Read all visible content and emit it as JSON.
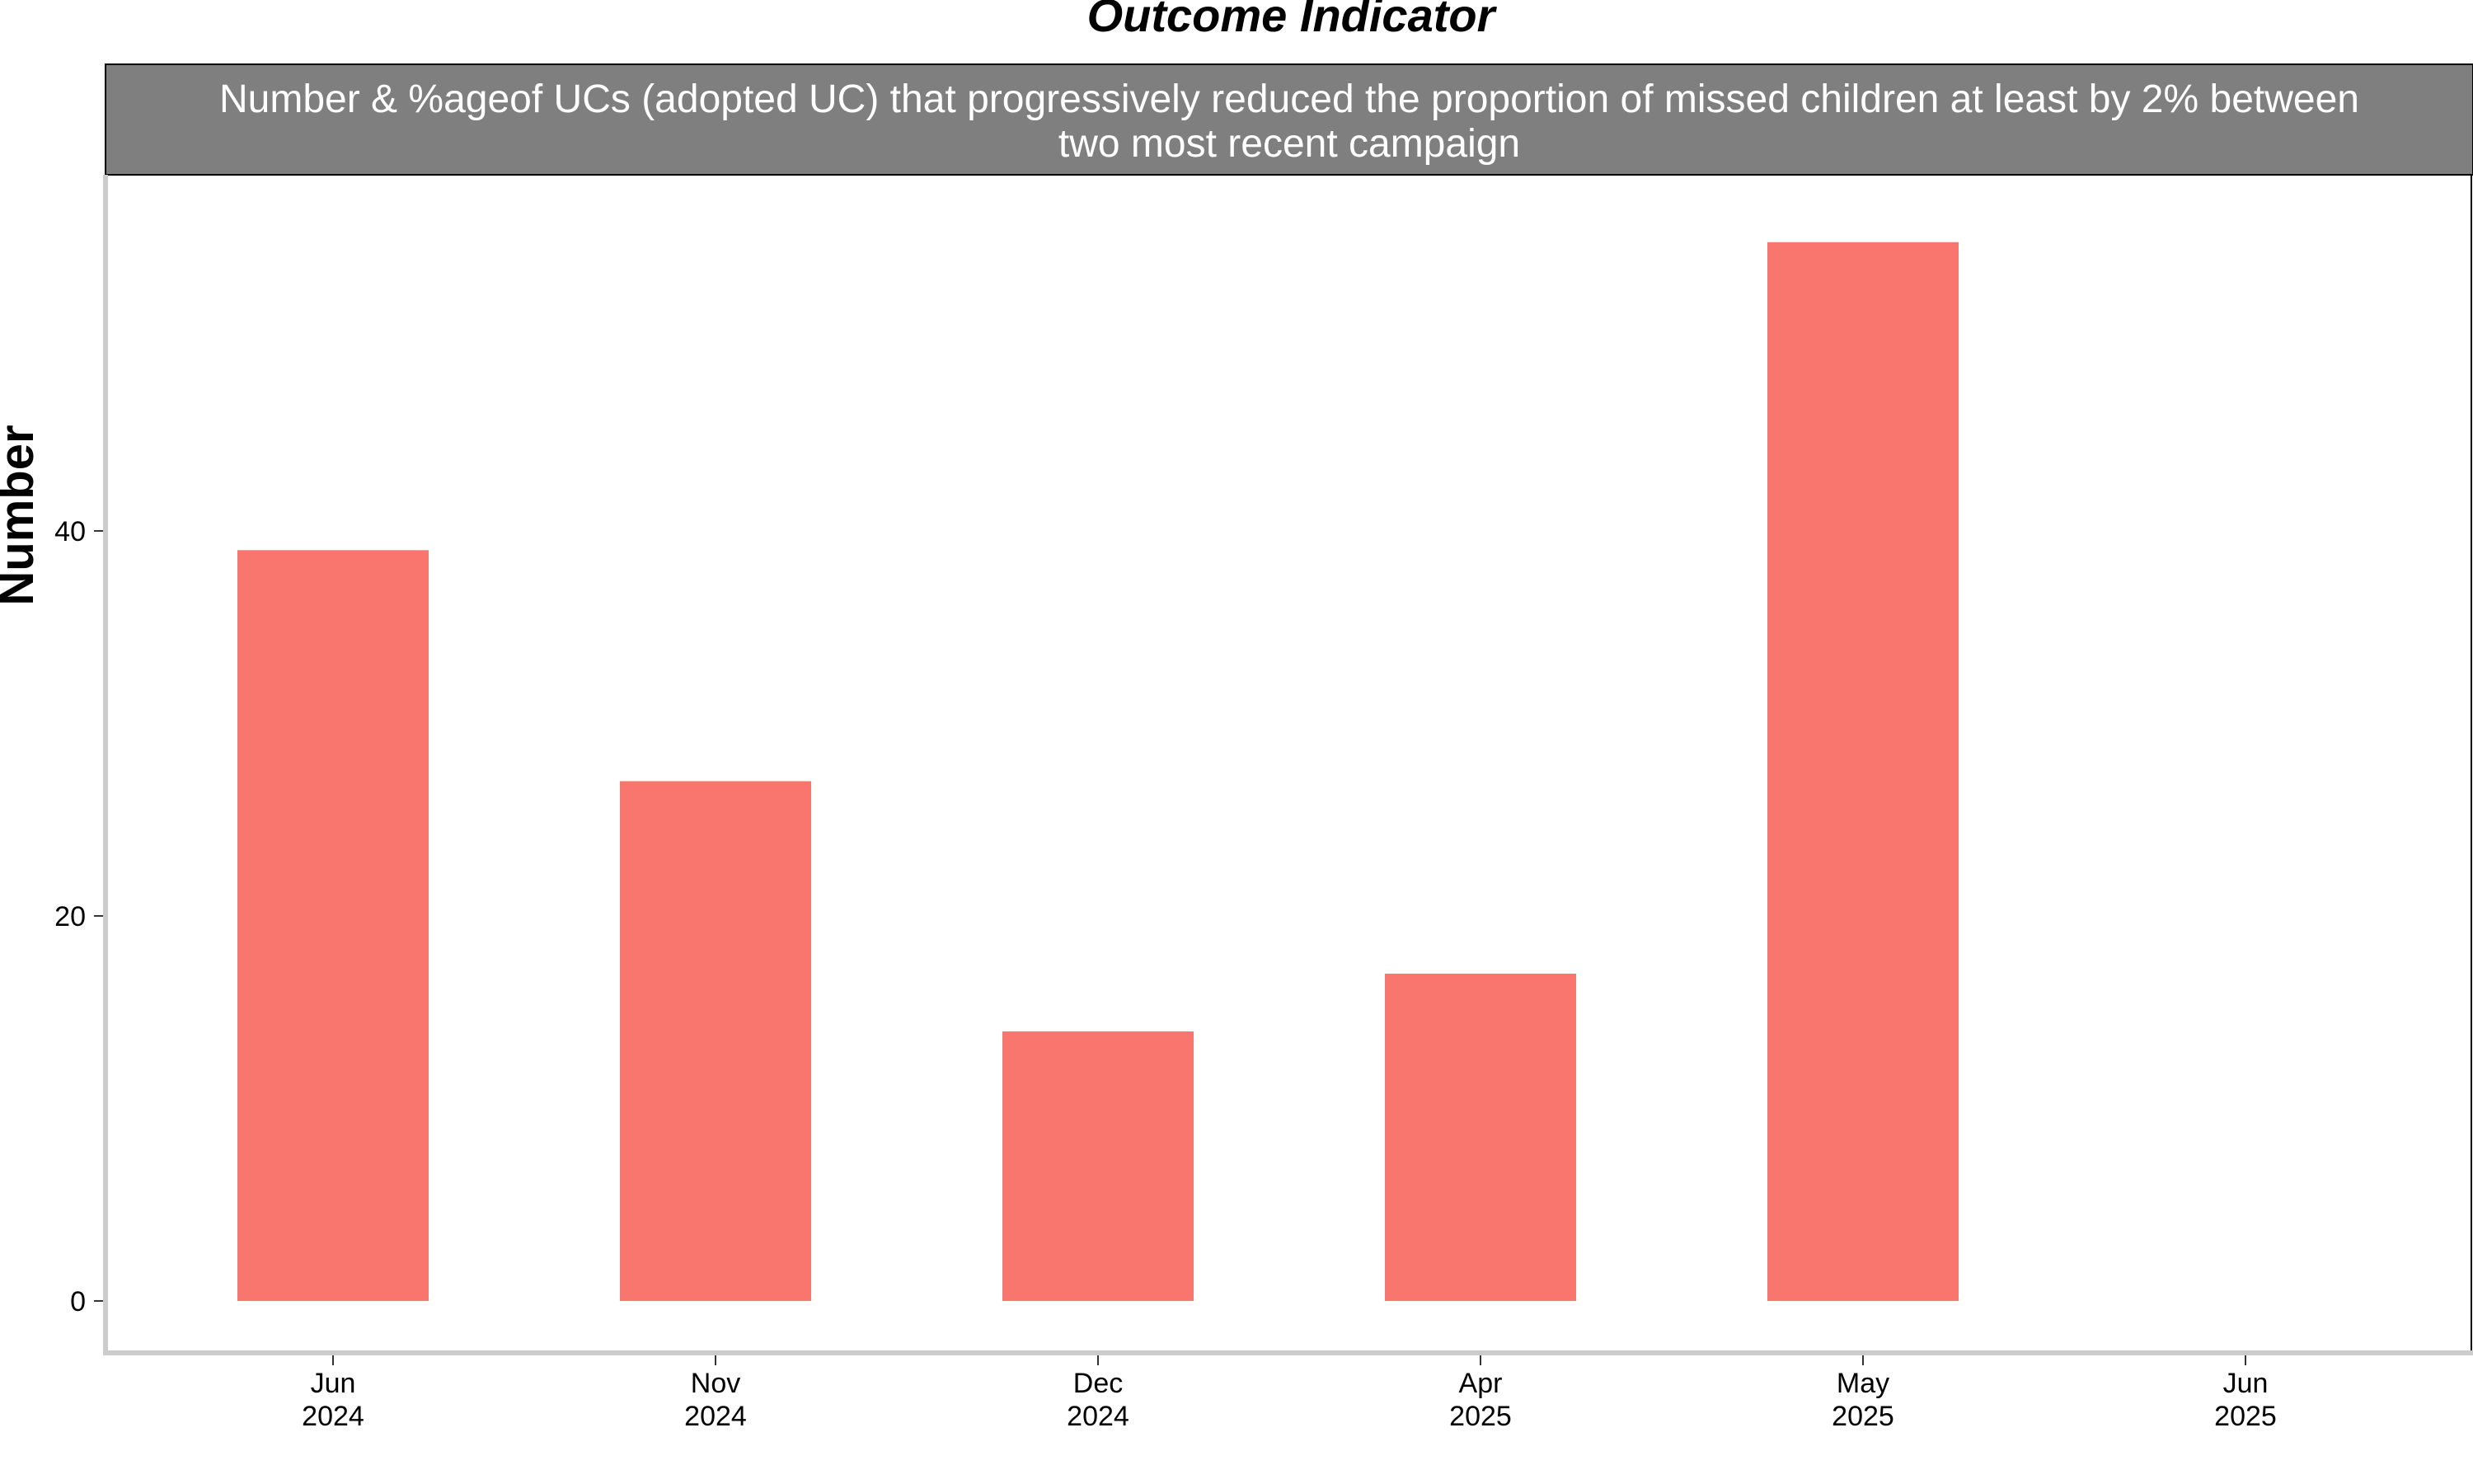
{
  "chart_data": {
    "type": "bar",
    "title": "Outcome Indicator",
    "subtitle_lines": [
      "Number & %ageof UCs (adopted UC) that progressively reduced the proportion of missed children at least by 2% between",
      "two most recent campaign"
    ],
    "xlabel": "",
    "ylabel": "Number",
    "categories": [
      [
        "Jun",
        "2024"
      ],
      [
        "Nov",
        "2024"
      ],
      [
        "Dec",
        "2024"
      ],
      [
        "Apr",
        "2025"
      ],
      [
        "May",
        "2025"
      ],
      [
        "Jun",
        "2025"
      ]
    ],
    "values": [
      39,
      27,
      14,
      17,
      55,
      null
    ],
    "yticks": [
      0,
      20,
      40
    ],
    "ylim": [
      -2.7,
      58.5
    ],
    "grid": false,
    "legend": "none",
    "colors": {
      "bar": "#F8766D",
      "strip_background": "#7F7F7F",
      "axis_line": "#CCCCCC"
    }
  }
}
